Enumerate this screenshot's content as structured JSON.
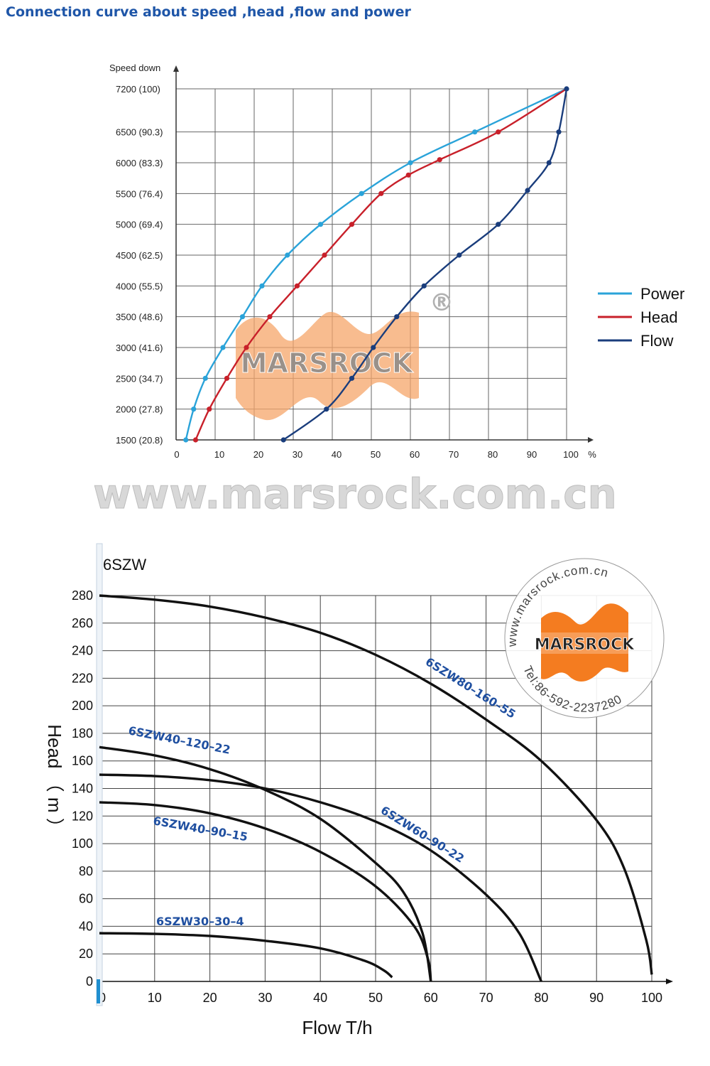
{
  "title": "Connection curve about speed ,head ,flow and power",
  "colors": {
    "title": "#1f56a8",
    "power": "#2aa3d9",
    "head": "#c8202a",
    "flow": "#1a3d7c",
    "curve": "#111111",
    "curve_label": "#1f4fa0",
    "logo_orange": "#f47c20"
  },
  "watermark": {
    "url": "www.marsrock.com.cn",
    "brand": "MARSROCK",
    "registered": "®",
    "seal_url": "www.marsrock.com.cn",
    "seal_tel": "Tel:86-592-2237280"
  },
  "chart_data": [
    {
      "type": "line",
      "ylabel": "Speed down",
      "xunit": "%",
      "xlim": [
        0,
        100
      ],
      "xticks": [
        "0",
        "10",
        "20",
        "30",
        "40",
        "50",
        "60",
        "70",
        "80",
        "90",
        "100"
      ],
      "yticks": [
        {
          "speed": 1500,
          "label": "1500 (20.8)"
        },
        {
          "speed": 2000,
          "label": "2000 (27.8)"
        },
        {
          "speed": 2500,
          "label": "2500 (34.7)"
        },
        {
          "speed": 3000,
          "label": "3000 (41.6)"
        },
        {
          "speed": 3500,
          "label": "3500 (48.6)"
        },
        {
          "speed": 4000,
          "label": "4000 (55.5)"
        },
        {
          "speed": 4500,
          "label": "4500 (62.5)"
        },
        {
          "speed": 5000,
          "label": "5000 (69.4)"
        },
        {
          "speed": 5500,
          "label": "5500 (76.4)"
        },
        {
          "speed": 6000,
          "label": "6000 (83.3)"
        },
        {
          "speed": 6500,
          "label": "6500 (90.3)"
        },
        {
          "speed": 7200,
          "label": "7200   (100)"
        }
      ],
      "grid": true,
      "legend": "right",
      "series": [
        {
          "name": "Power",
          "color": "#2aa3d9",
          "points": [
            [
              2.5,
              1500
            ],
            [
              4.5,
              2000
            ],
            [
              7.5,
              2500
            ],
            [
              12,
              3000
            ],
            [
              17,
              3500
            ],
            [
              22,
              4000
            ],
            [
              28.5,
              4500
            ],
            [
              37,
              5000
            ],
            [
              47.5,
              5500
            ],
            [
              60,
              6000
            ],
            [
              76.5,
              6500
            ],
            [
              100,
              7200
            ]
          ]
        },
        {
          "name": "Head",
          "color": "#c8202a",
          "points": [
            [
              5,
              1500
            ],
            [
              8.5,
              2000
            ],
            [
              13,
              2500
            ],
            [
              18,
              3000
            ],
            [
              24,
              3500
            ],
            [
              31,
              4000
            ],
            [
              38,
              4500
            ],
            [
              45,
              5000
            ],
            [
              52.5,
              5500
            ],
            [
              59.5,
              5800
            ],
            [
              67.5,
              6050
            ],
            [
              82.5,
              6500
            ],
            [
              100,
              7200
            ]
          ]
        },
        {
          "name": "Flow",
          "color": "#1a3d7c",
          "points": [
            [
              27.5,
              1500
            ],
            [
              38.5,
              2000
            ],
            [
              45,
              2500
            ],
            [
              50.5,
              3000
            ],
            [
              56.5,
              3500
            ],
            [
              63.5,
              4000
            ],
            [
              72.5,
              4500
            ],
            [
              82.5,
              5000
            ],
            [
              90,
              5550
            ],
            [
              95.5,
              6000
            ],
            [
              98,
              6500
            ],
            [
              100,
              7200
            ]
          ]
        }
      ]
    },
    {
      "type": "line",
      "title": "6SZW",
      "xlabel": "Flow  T/h",
      "ylabel": "Head  （ m ）",
      "xlim": [
        0,
        100
      ],
      "ylim": [
        0,
        280
      ],
      "xticks": [
        0,
        10,
        20,
        30,
        40,
        50,
        60,
        70,
        80,
        90,
        100
      ],
      "yticks": [
        0,
        20,
        40,
        60,
        80,
        100,
        120,
        140,
        160,
        180,
        200,
        220,
        240,
        260,
        280
      ],
      "grid": true,
      "series": [
        {
          "name": "6SZW30–30–4",
          "points": [
            [
              0,
              35
            ],
            [
              10,
              34.5
            ],
            [
              20,
              33
            ],
            [
              30,
              29.5
            ],
            [
              40,
              24
            ],
            [
              48,
              15
            ],
            [
              51.5,
              8
            ],
            [
              53,
              3
            ]
          ]
        },
        {
          "name": "6SZW40–90–15",
          "points": [
            [
              0,
              130
            ],
            [
              10,
              128
            ],
            [
              20,
              122
            ],
            [
              30,
              111
            ],
            [
              40,
              94
            ],
            [
              50,
              69
            ],
            [
              57,
              40
            ],
            [
              59.5,
              16
            ],
            [
              60,
              0
            ]
          ]
        },
        {
          "name": "6SZW40–120–22",
          "points": [
            [
              0,
              170
            ],
            [
              10,
              164
            ],
            [
              20,
              154
            ],
            [
              30,
              139
            ],
            [
              40,
              118
            ],
            [
              50,
              86
            ],
            [
              55,
              65
            ],
            [
              58.5,
              35
            ],
            [
              60,
              0
            ]
          ]
        },
        {
          "name": "6SZW60–90–22",
          "points": [
            [
              0,
              150
            ],
            [
              10,
              149
            ],
            [
              20,
              146
            ],
            [
              30,
              140
            ],
            [
              40,
              130
            ],
            [
              50,
              116
            ],
            [
              60,
              95
            ],
            [
              70,
              63
            ],
            [
              76,
              35
            ],
            [
              80,
              0
            ]
          ]
        },
        {
          "name": "6SZW80–160–55",
          "points": [
            [
              0,
              280
            ],
            [
              10,
              277
            ],
            [
              20,
              272
            ],
            [
              30,
              264
            ],
            [
              40,
              253
            ],
            [
              50,
              237
            ],
            [
              60,
              216
            ],
            [
              70,
              190
            ],
            [
              80,
              160
            ],
            [
              90,
              117
            ],
            [
              95,
              82
            ],
            [
              99,
              30
            ],
            [
              100,
              5
            ]
          ]
        }
      ]
    }
  ]
}
